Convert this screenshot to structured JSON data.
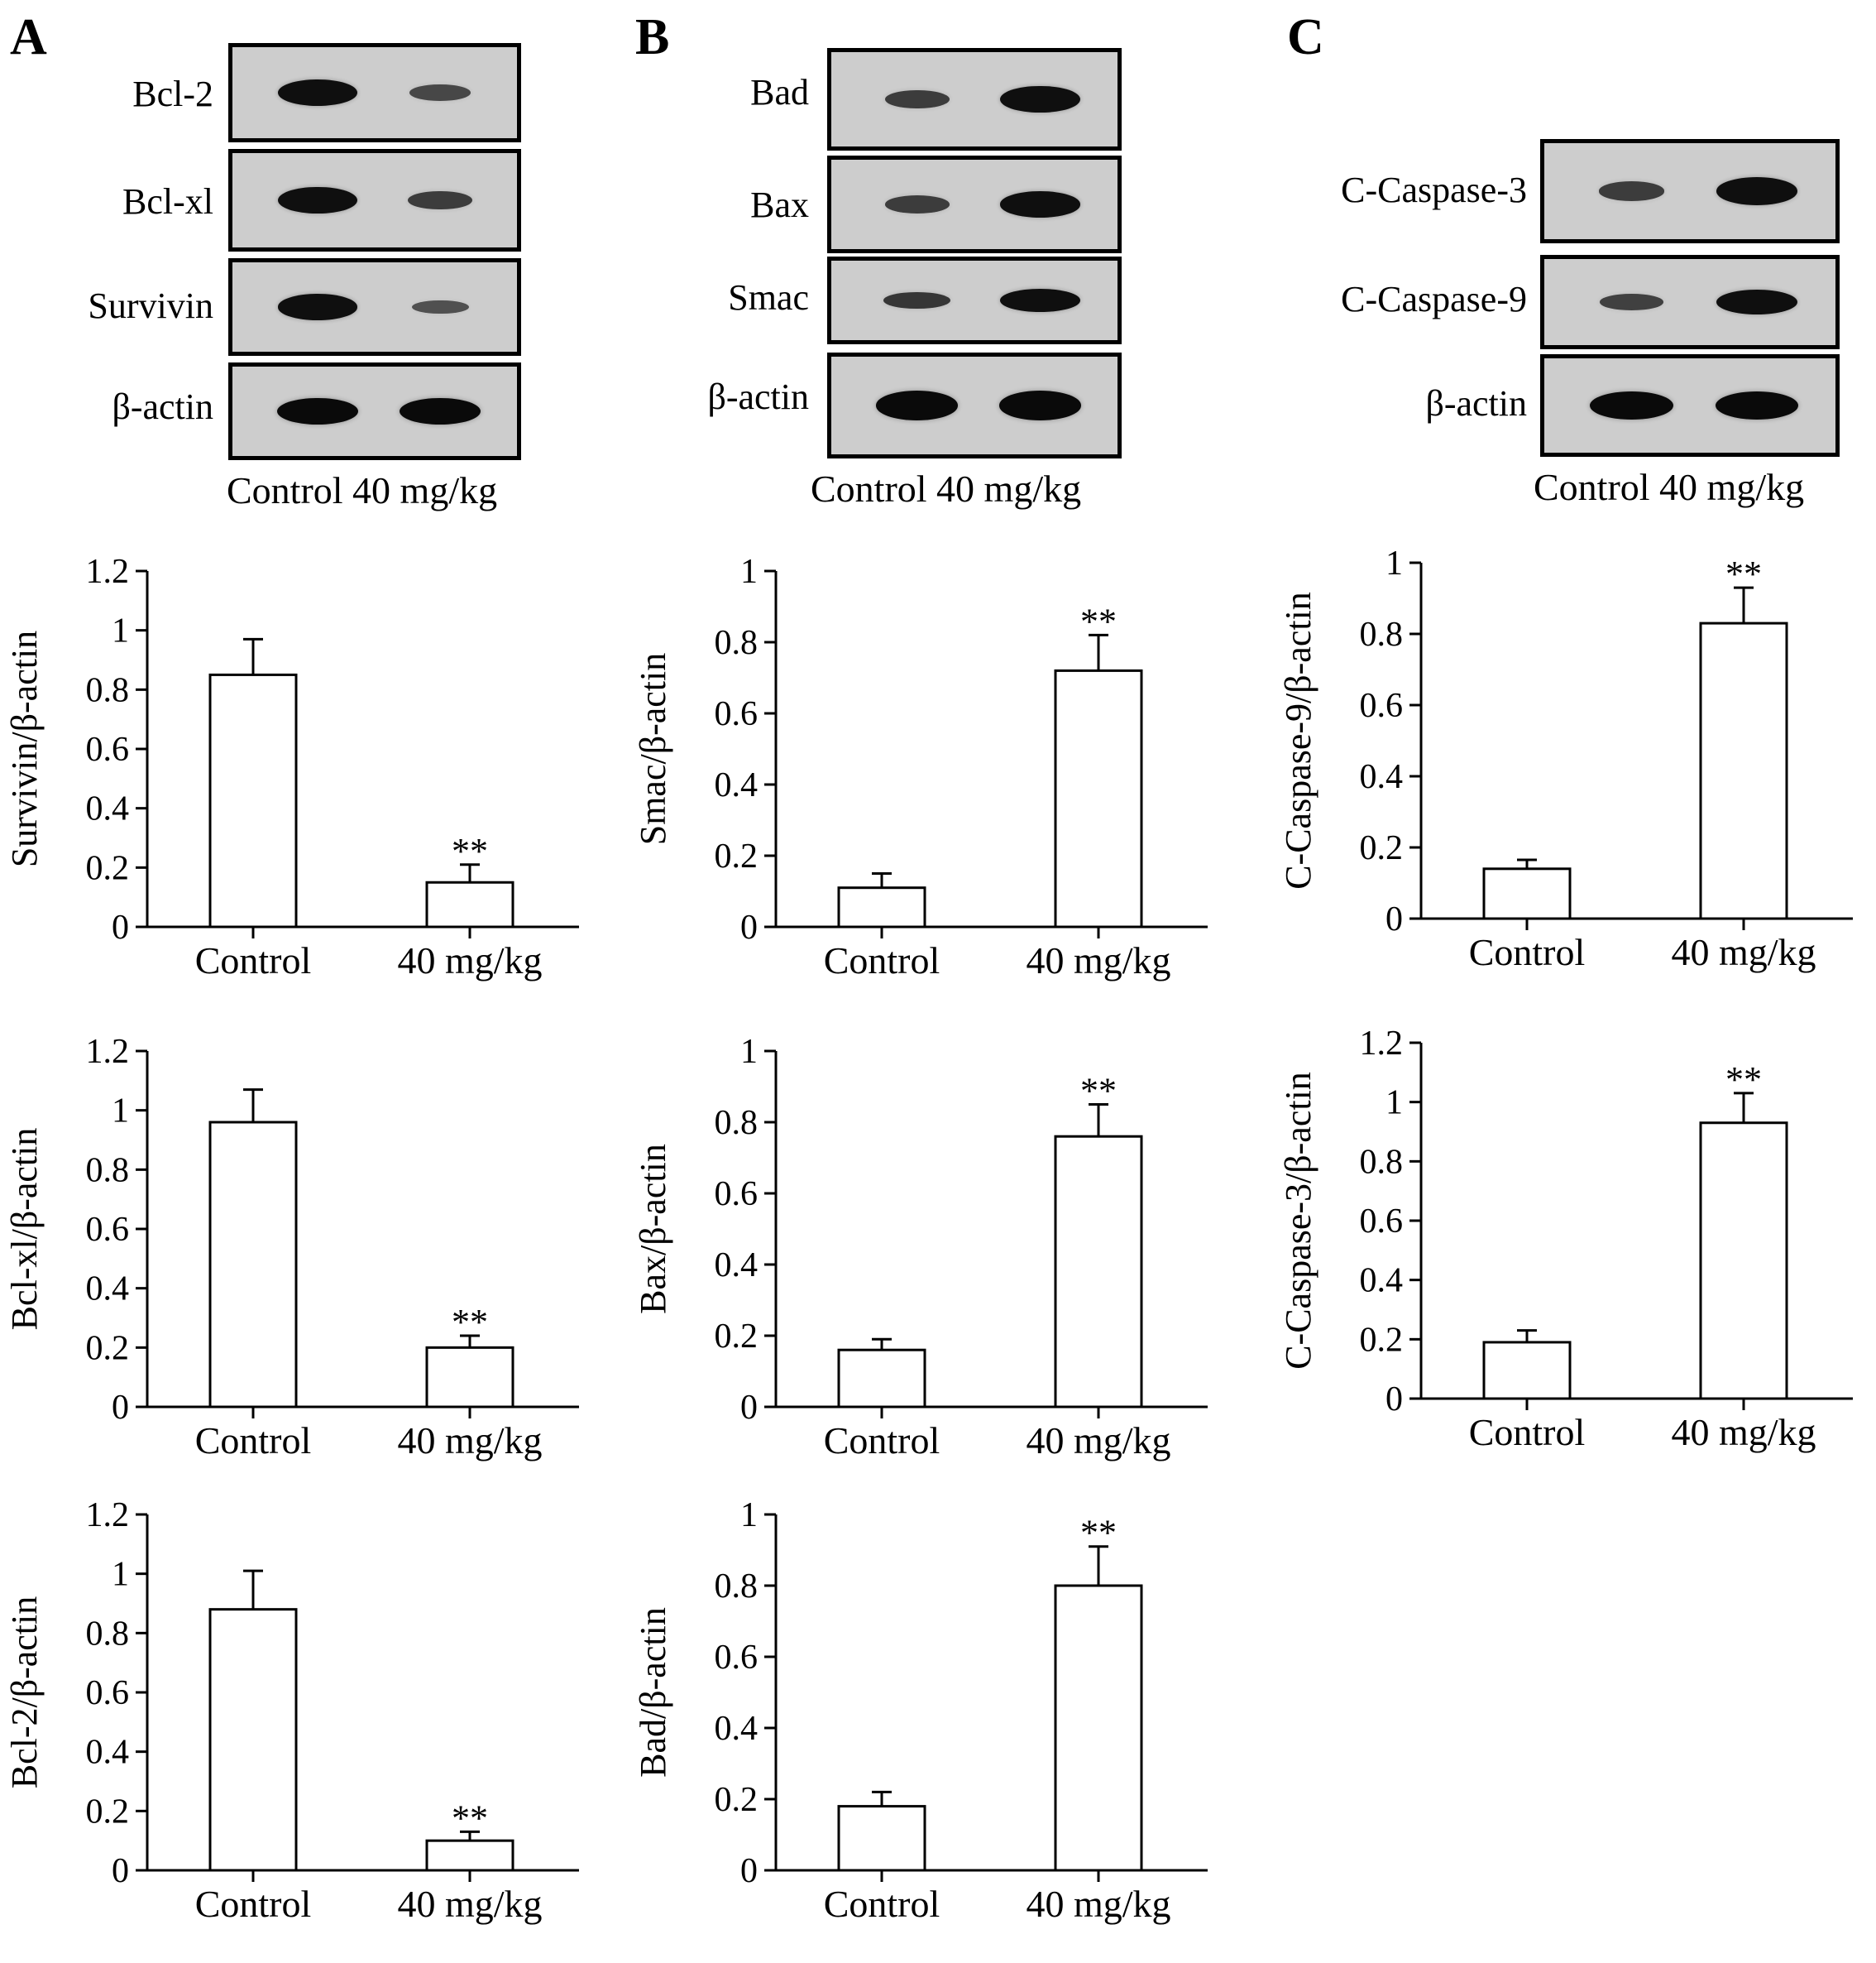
{
  "panels": [
    {
      "letter": "A",
      "blot": {
        "rows": [
          {
            "label": "Bcl-2",
            "band_intensity": [
              0.95,
              0.45
            ]
          },
          {
            "label": "Bcl-xl",
            "band_intensity": [
              0.95,
              0.55
            ]
          },
          {
            "label": "Survivin",
            "band_intensity": [
              0.95,
              0.35
            ]
          },
          {
            "label": "β-actin",
            "band_intensity": [
              1.0,
              1.0
            ]
          }
        ],
        "footer": "Control 40 mg/kg"
      }
    },
    {
      "letter": "B",
      "blot": {
        "rows": [
          {
            "label": "Bad",
            "band_intensity": [
              0.55,
              0.95
            ]
          },
          {
            "label": "Bax",
            "band_intensity": [
              0.55,
              0.95
            ]
          },
          {
            "label": "Smac",
            "band_intensity": [
              0.6,
              0.95
            ]
          },
          {
            "label": "β-actin",
            "band_intensity": [
              1.0,
              1.0
            ]
          }
        ],
        "footer": "Control 40 mg/kg"
      }
    },
    {
      "letter": "C",
      "blot": {
        "rows": [
          {
            "label": "C-Caspase-3",
            "band_intensity": [
              0.55,
              0.95
            ]
          },
          {
            "label": "C-Caspase-9",
            "band_intensity": [
              0.5,
              0.95
            ]
          },
          {
            "label": "β-actin",
            "band_intensity": [
              1.0,
              1.0
            ]
          }
        ],
        "footer": "Control 40 mg/kg"
      }
    }
  ],
  "chart_data": [
    {
      "type": "bar",
      "panel": "A",
      "ylabel": "Survivin/β-actin",
      "categories": [
        "Control",
        "40 mg/kg"
      ],
      "values": [
        0.85,
        0.15
      ],
      "errors": [
        0.12,
        0.06
      ],
      "annotations": [
        "",
        "**"
      ],
      "ylim": [
        0,
        1.2
      ],
      "yticks": [
        "0",
        "0.2",
        "0.4",
        "0.6",
        "0.8",
        "1",
        "1.2"
      ]
    },
    {
      "type": "bar",
      "panel": "A",
      "ylabel": "Bcl-xl/β-actin",
      "categories": [
        "Control",
        "40 mg/kg"
      ],
      "values": [
        0.96,
        0.2
      ],
      "errors": [
        0.11,
        0.04
      ],
      "annotations": [
        "",
        "**"
      ],
      "ylim": [
        0,
        1.2
      ],
      "yticks": [
        "0",
        "0.2",
        "0.4",
        "0.6",
        "0.8",
        "1",
        "1.2"
      ]
    },
    {
      "type": "bar",
      "panel": "A",
      "ylabel": "Bcl-2/β-actin",
      "categories": [
        "Control",
        "40 mg/kg"
      ],
      "values": [
        0.88,
        0.1
      ],
      "errors": [
        0.13,
        0.03
      ],
      "annotations": [
        "",
        "**"
      ],
      "ylim": [
        0,
        1.2
      ],
      "yticks": [
        "0",
        "0.2",
        "0.4",
        "0.6",
        "0.8",
        "1",
        "1.2"
      ]
    },
    {
      "type": "bar",
      "panel": "B",
      "ylabel": "Smac/β-actin",
      "categories": [
        "Control",
        "40 mg/kg"
      ],
      "values": [
        0.11,
        0.72
      ],
      "errors": [
        0.04,
        0.1
      ],
      "annotations": [
        "",
        "**"
      ],
      "ylim": [
        0,
        1.0
      ],
      "yticks": [
        "0",
        "0.2",
        "0.4",
        "0.6",
        "0.8",
        "1"
      ]
    },
    {
      "type": "bar",
      "panel": "B",
      "ylabel": "Bax/β-actin",
      "categories": [
        "Control",
        "40 mg/kg"
      ],
      "values": [
        0.16,
        0.76
      ],
      "errors": [
        0.03,
        0.09
      ],
      "annotations": [
        "",
        "**"
      ],
      "ylim": [
        0,
        1.0
      ],
      "yticks": [
        "0",
        "0.2",
        "0.4",
        "0.6",
        "0.8",
        "1"
      ]
    },
    {
      "type": "bar",
      "panel": "B",
      "ylabel": "Bad/β-actin",
      "categories": [
        "Control",
        "40 mg/kg"
      ],
      "values": [
        0.18,
        0.8
      ],
      "errors": [
        0.04,
        0.11
      ],
      "annotations": [
        "",
        "**"
      ],
      "ylim": [
        0,
        1.0
      ],
      "yticks": [
        "0",
        "0.2",
        "0.4",
        "0.6",
        "0.8",
        "1"
      ]
    },
    {
      "type": "bar",
      "panel": "C",
      "ylabel": "C-Caspase-9/β-actin",
      "categories": [
        "Control",
        "40 mg/kg"
      ],
      "values": [
        0.14,
        0.83
      ],
      "errors": [
        0.025,
        0.1
      ],
      "annotations": [
        "",
        "**"
      ],
      "ylim": [
        0,
        1.0
      ],
      "yticks": [
        "0",
        "0.2",
        "0.4",
        "0.6",
        "0.8",
        "1"
      ]
    },
    {
      "type": "bar",
      "panel": "C",
      "ylabel": "C-Caspase-3/β-actin",
      "categories": [
        "Control",
        "40 mg/kg"
      ],
      "values": [
        0.19,
        0.93
      ],
      "errors": [
        0.04,
        0.1
      ],
      "annotations": [
        "",
        "**"
      ],
      "ylim": [
        0,
        1.2
      ],
      "yticks": [
        "0",
        "0.2",
        "0.4",
        "0.6",
        "0.8",
        "1",
        "1.2"
      ]
    }
  ]
}
